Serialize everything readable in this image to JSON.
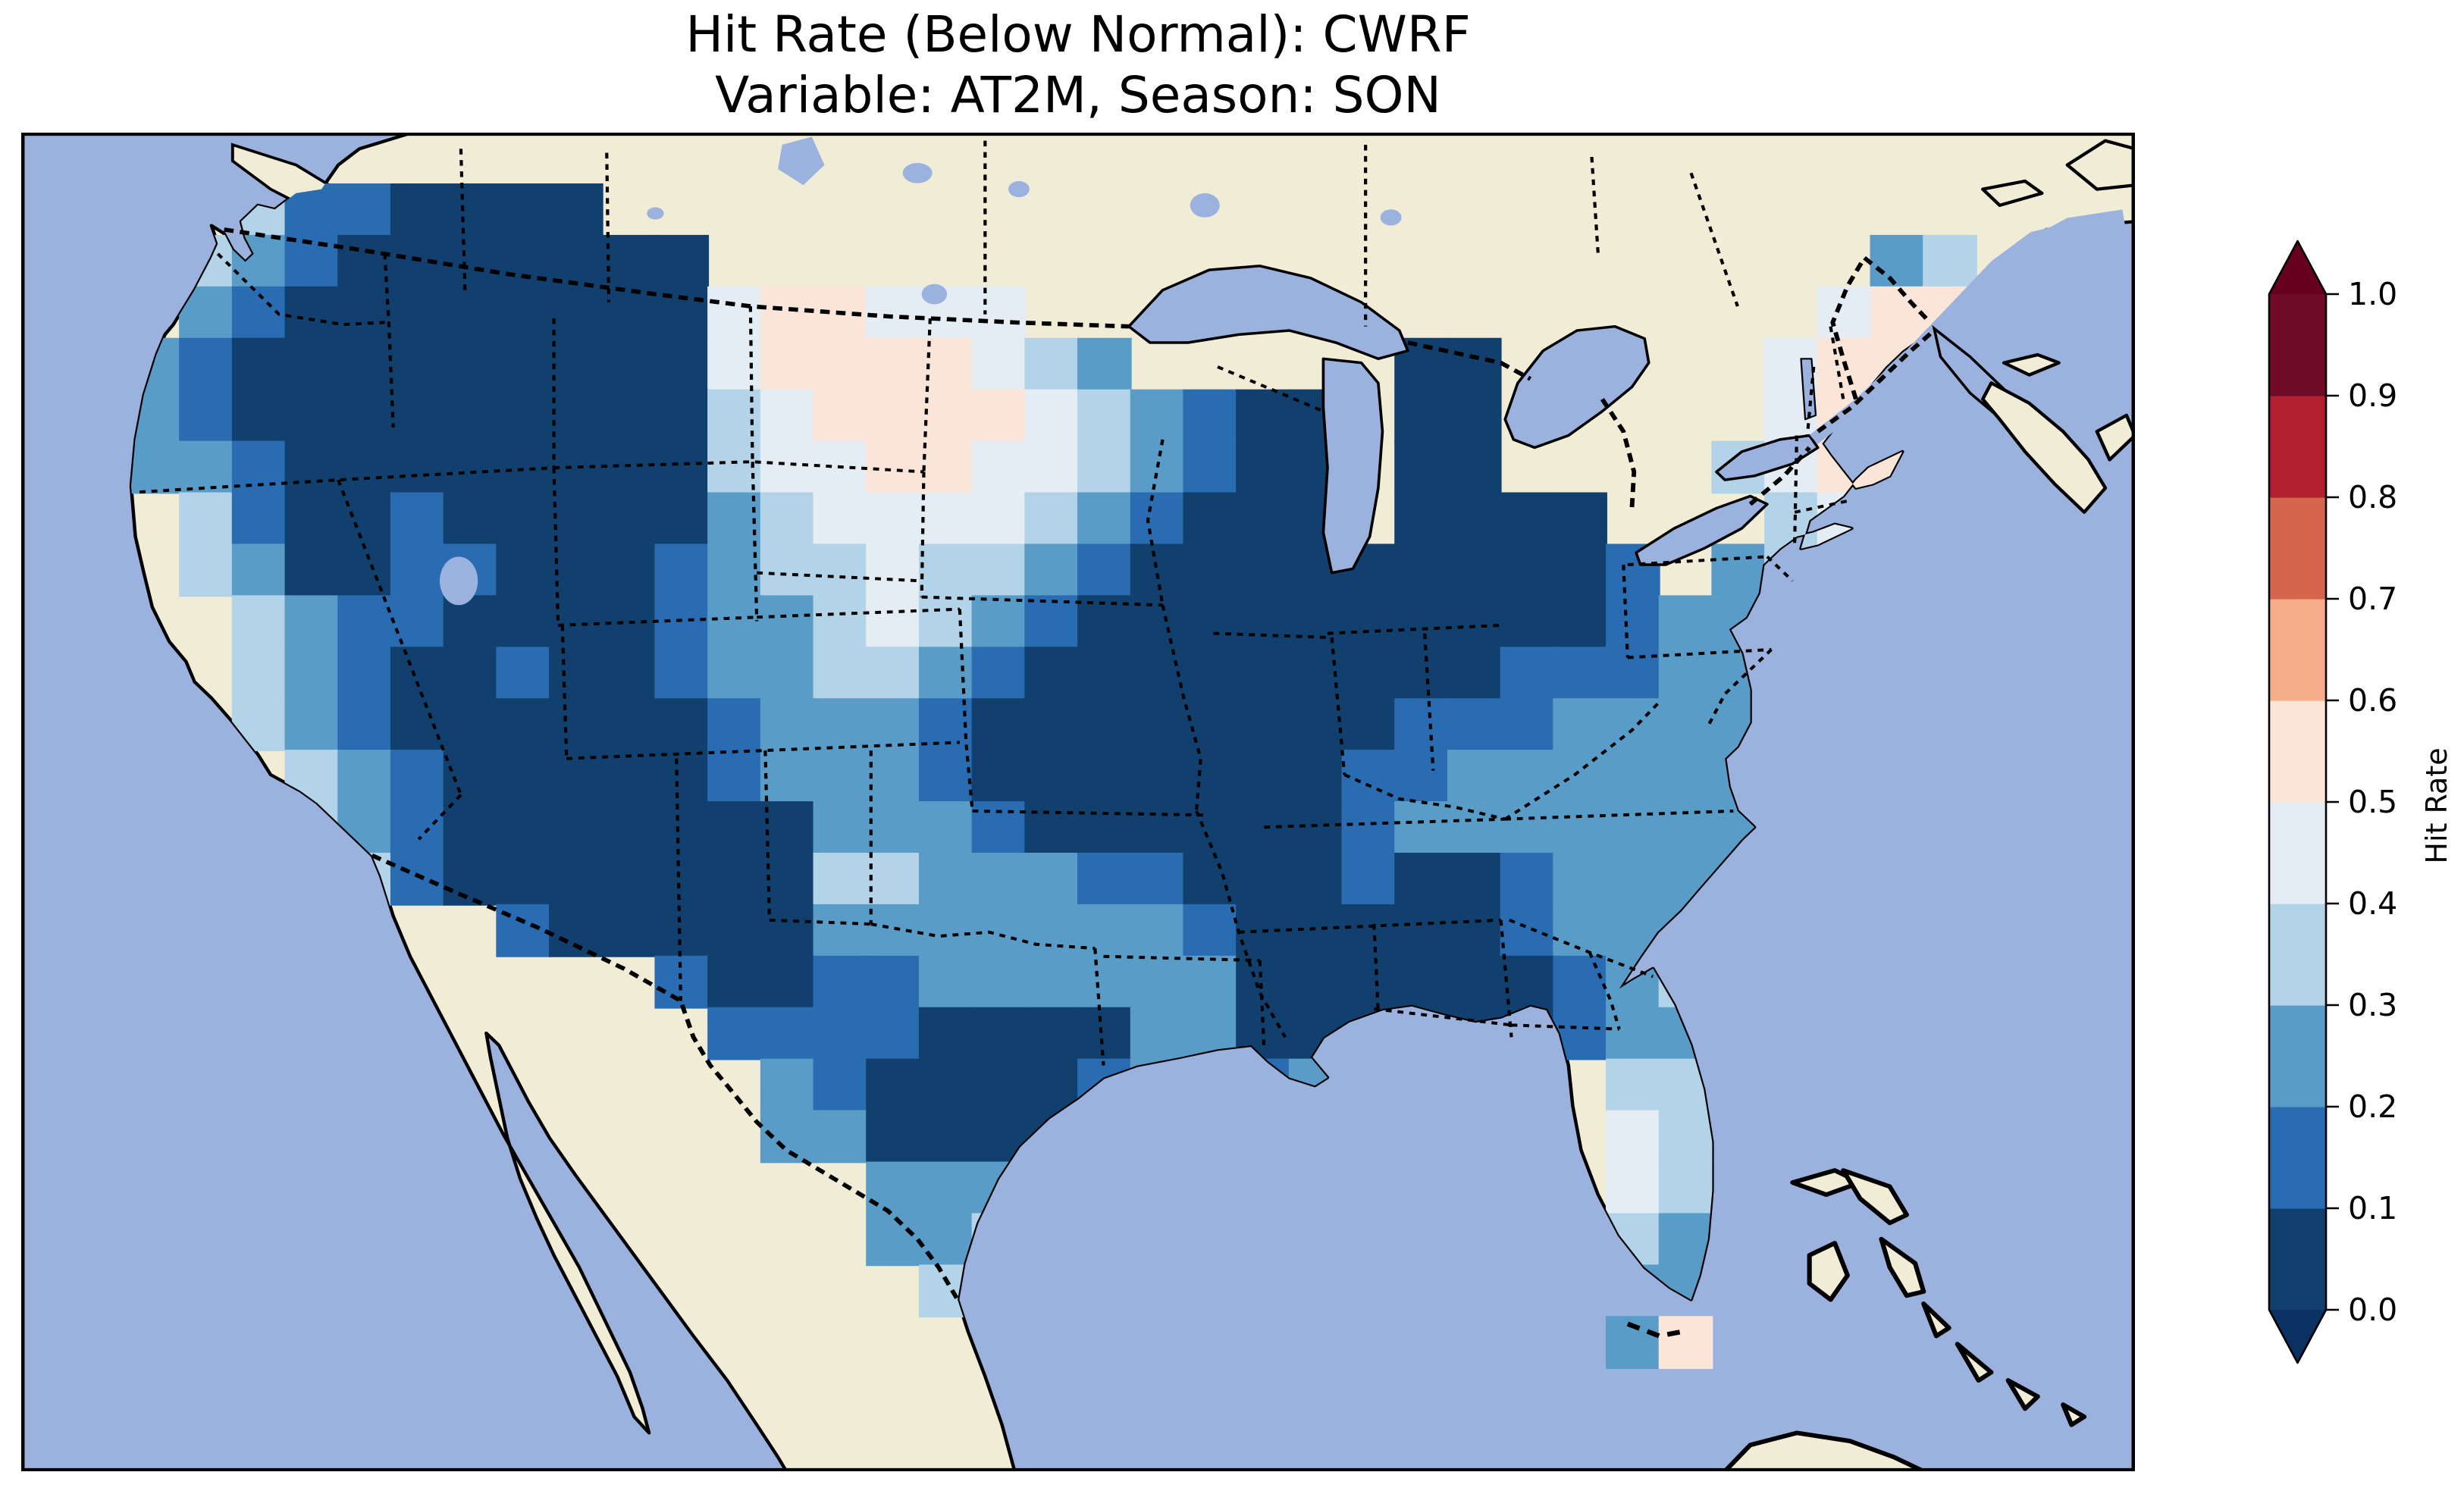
{
  "title": {
    "line1": "Hit Rate (Below Normal): CWRF",
    "line2": "Variable: AT2M, Season: SON"
  },
  "colorbar": {
    "label": "Hit Rate",
    "ticks": [
      "1.0",
      "0.9",
      "0.8",
      "0.7",
      "0.6",
      "0.5",
      "0.4",
      "0.3",
      "0.2",
      "0.1",
      "0.0"
    ],
    "band_colors": [
      "#12406e",
      "#2a6cb1",
      "#5a9cc8",
      "#b3d4e8",
      "#e4edf4",
      "#fbe5d8",
      "#f6ae8a",
      "#d4664e",
      "#b2202f",
      "#6f0b26"
    ],
    "under_color": "#0a3161",
    "over_color": "#67001f"
  },
  "map_colors": {
    "ocean": "#9cb2de",
    "land": "#f0ecd6",
    "lake": "#9cb2de",
    "coastline": "#000000",
    "border": "#000000"
  },
  "chart_data": {
    "type": "heatmap",
    "title": "Hit Rate (Below Normal): CWRF",
    "subtitle": "Variable: AT2M, Season: SON",
    "metric": "Hit Rate",
    "category": "Below Normal",
    "model": "CWRF",
    "variable": "AT2M",
    "season": "SON",
    "region": "Continental United States",
    "colorbar_label": "Hit Rate",
    "value_range": [
      0.0,
      1.0
    ],
    "band_edges": [
      0.0,
      0.1,
      0.2,
      0.3,
      0.4,
      0.5,
      0.6,
      0.7,
      0.8,
      0.9,
      1.0
    ],
    "colormap": "RdBu reversed (dark blue = 0.0, dark red = 1.0), extended arrows both ends",
    "legend_position": "right vertical colorbar",
    "grid_encoding": {
      "rows": 26,
      "cols": 40,
      ".": "no data (outside US)",
      "0": "0.0-0.1",
      "1": "0.1-0.2",
      "2": "0.2-0.3",
      "3": "0.3-0.4",
      "4": "0.4-0.5",
      "5": "0.5-0.6"
    },
    "grid": [
      "........................................",
      "....3110000.............................",
      "...3210000000......................23...",
      "...2100000000455444...............455...",
      "..2100000000045555432.....00.....4555...",
      "..21000000000345555432100.00.....455....",
      "..22100000000344554432100.00....3455....",
      "...3100100000234444321000.0000...345....",
      "...3200110001233433210000000001.2343....",
      "....3211000012234321000000000012234.....",
      "....3210010012233210000000001112233.....",
      "....3210000001222100000000111222234.....",
      ".....321000001222100000001122222233.....",
      ".....32100000002221000000122222223......",
      "......310000000332221100010012222.......",
      ".........100000222222210000012223.......",
      "............10011222222000000123........",
      ".............1111000022000000122........",
      "..............2100001221222...33........",
      "..............2200000233332...43........",
      "................2223..23544...43........",
      "................223...........32........",
      ".................3............22........",
      "..............................25........",
      "........................................",
      "........................................"
    ],
    "summary": "Hit rates 0.0-0.3 (dark blues) dominate the interior West, Midwest, Ohio Valley and Gulf states; 0.4-0.6 (white to pale pink) over the northern Plains (eastern Montana/Dakotas), central Florida, coastal Louisiana/Texas and New England (pink 0.5-0.6); no values above 0.6 appear on the map."
  }
}
